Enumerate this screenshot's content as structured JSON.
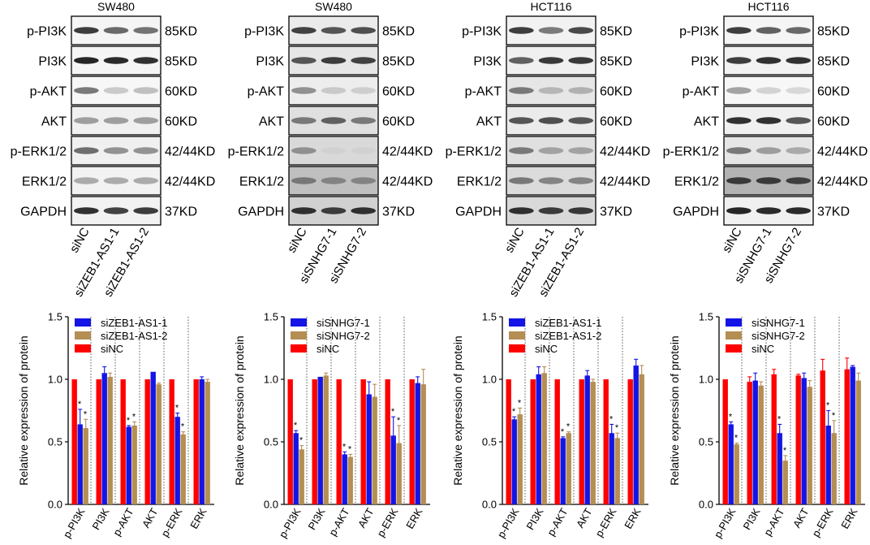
{
  "western_blots": [
    {
      "title": "SW480",
      "proteins": [
        "p-PI3K",
        "PI3K",
        "p-AKT",
        "AKT",
        "p-ERK1/2",
        "ERK1/2",
        "GAPDH"
      ],
      "sizes": [
        "85KD",
        "85KD",
        "60KD",
        "60KD",
        "42/44KD",
        "42/44KD",
        "37KD"
      ],
      "lanes": [
        "siNC",
        "siZEB1-AS1-1",
        "siZEB1-AS1-2"
      ],
      "band_intensity": [
        [
          0.8,
          0.62,
          0.58
        ],
        [
          0.9,
          0.88,
          0.85
        ],
        [
          0.55,
          0.22,
          0.26
        ],
        [
          0.4,
          0.4,
          0.4
        ],
        [
          0.6,
          0.45,
          0.45
        ],
        [
          0.35,
          0.35,
          0.35
        ],
        [
          0.85,
          0.78,
          0.8
        ]
      ],
      "panel_tone": [
        0.04,
        0.04,
        0.03,
        0.06,
        0.06,
        0.05,
        0.05
      ]
    },
    {
      "title": "SW480",
      "proteins": [
        "p-PI3K",
        "PI3K",
        "p-AKT",
        "AKT",
        "p-ERK1/2",
        "ERK1/2",
        "GAPDH"
      ],
      "sizes": [
        "85KD",
        "85KD",
        "60KD",
        "60KD",
        "42/44KD",
        "42/44KD",
        "37KD"
      ],
      "lanes": [
        "siNC",
        "siSNHG7-1",
        "siSNHG7-2"
      ],
      "band_intensity": [
        [
          0.78,
          0.7,
          0.72
        ],
        [
          0.7,
          0.8,
          0.78
        ],
        [
          0.45,
          0.22,
          0.2
        ],
        [
          0.55,
          0.65,
          0.55
        ],
        [
          0.45,
          0.18,
          0.18
        ],
        [
          0.55,
          0.5,
          0.5
        ],
        [
          0.85,
          0.8,
          0.85
        ]
      ],
      "panel_tone": [
        0.08,
        0.1,
        0.07,
        0.12,
        0.15,
        0.25,
        0.18
      ]
    },
    {
      "title": "HCT116",
      "proteins": [
        "p-PI3K",
        "PI3K",
        "p-AKT",
        "AKT",
        "p-ERK1/2",
        "ERK1/2",
        "GAPDH"
      ],
      "sizes": [
        "85KD",
        "85KD",
        "60KD",
        "60KD",
        "42/44KD",
        "42/44KD",
        "37KD"
      ],
      "lanes": [
        "siNC",
        "siZEB1-AS1-1",
        "siZEB1-AS1-2"
      ],
      "band_intensity": [
        [
          0.8,
          0.55,
          0.75
        ],
        [
          0.65,
          0.82,
          0.82
        ],
        [
          0.55,
          0.3,
          0.32
        ],
        [
          0.7,
          0.72,
          0.7
        ],
        [
          0.55,
          0.38,
          0.38
        ],
        [
          0.55,
          0.5,
          0.5
        ],
        [
          0.85,
          0.8,
          0.82
        ]
      ],
      "panel_tone": [
        0.05,
        0.06,
        0.1,
        0.08,
        0.12,
        0.14,
        0.15
      ]
    },
    {
      "title": "HCT116",
      "proteins": [
        "p-PI3K",
        "PI3K",
        "p-AKT",
        "AKT",
        "p-ERK1/2",
        "ERK1/2",
        "GAPDH"
      ],
      "sizes": [
        "85KD",
        "85KD",
        "60KD",
        "60KD",
        "42/44KD",
        "42/44KD",
        "37KD"
      ],
      "lanes": [
        "siNC",
        "siSNHG7-1",
        "siSNHG7-2"
      ],
      "band_intensity": [
        [
          0.8,
          0.65,
          0.62
        ],
        [
          0.8,
          0.85,
          0.85
        ],
        [
          0.38,
          0.18,
          0.16
        ],
        [
          0.85,
          0.85,
          0.7
        ],
        [
          0.55,
          0.4,
          0.35
        ],
        [
          0.8,
          0.8,
          0.78
        ],
        [
          0.9,
          0.88,
          0.88
        ]
      ],
      "panel_tone": [
        0.04,
        0.05,
        0.03,
        0.06,
        0.1,
        0.3,
        0.06
      ]
    }
  ],
  "chart_data": [
    {
      "type": "bar",
      "categories": [
        "p-PI3K",
        "PI3K",
        "p-AKT",
        "AKT",
        "p-ERK",
        "ERK"
      ],
      "series": [
        {
          "name": "siNC",
          "color": "#ff0000",
          "values": [
            1.0,
            1.0,
            1.0,
            1.0,
            1.0,
            1.0
          ],
          "errors": [
            0.0,
            0.0,
            0.0,
            0.0,
            0.0,
            0.0
          ],
          "sig": [
            false,
            false,
            false,
            false,
            false,
            false
          ]
        },
        {
          "name": "siZEB1-AS1-1",
          "color": "#1414e6",
          "values": [
            0.64,
            1.05,
            0.62,
            1.06,
            0.7,
            1.0
          ],
          "errors": [
            0.12,
            0.05,
            0.01,
            0.0,
            0.03,
            0.02
          ],
          "sig": [
            true,
            false,
            true,
            false,
            true,
            false
          ]
        },
        {
          "name": "siZEB1-AS1-2",
          "color": "#b48e53",
          "values": [
            0.61,
            1.02,
            0.63,
            0.96,
            0.56,
            0.98
          ],
          "errors": [
            0.07,
            0.03,
            0.03,
            0.01,
            0.02,
            0.02
          ],
          "sig": [
            true,
            false,
            true,
            false,
            true,
            false
          ]
        }
      ],
      "xlabel": "",
      "ylabel": "Relative expression of protein",
      "ylim": [
        0.0,
        1.5
      ],
      "yticks": [
        "0.0",
        "0.5",
        "1.0",
        "1.5"
      ],
      "legend_order": [
        "siZEB1-AS1-1",
        "siZEB1-AS1-2",
        "siNC"
      ],
      "legend": "top-left"
    },
    {
      "type": "bar",
      "categories": [
        "p-PI3K",
        "PI3K",
        "p-AKT",
        "AKT",
        "p-ERK",
        "ERK"
      ],
      "series": [
        {
          "name": "siNC",
          "color": "#ff0000",
          "values": [
            1.0,
            1.0,
            1.0,
            1.0,
            1.0,
            1.0
          ],
          "errors": [
            0.0,
            0.0,
            0.0,
            0.0,
            0.0,
            0.0
          ],
          "sig": [
            false,
            false,
            false,
            false,
            false,
            false
          ]
        },
        {
          "name": "siSNHG7-1",
          "color": "#1414e6",
          "values": [
            0.57,
            1.02,
            0.4,
            0.88,
            0.55,
            0.97
          ],
          "errors": [
            0.02,
            0.0,
            0.02,
            0.1,
            0.15,
            0.05
          ],
          "sig": [
            true,
            false,
            true,
            false,
            true,
            false
          ]
        },
        {
          "name": "siSNHG7-2",
          "color": "#b48e53",
          "values": [
            0.44,
            1.03,
            0.38,
            0.86,
            0.49,
            0.96
          ],
          "errors": [
            0.03,
            0.02,
            0.02,
            0.1,
            0.14,
            0.12
          ],
          "sig": [
            true,
            false,
            true,
            false,
            true,
            false
          ]
        }
      ],
      "xlabel": "",
      "ylabel": "Relative expression of protein",
      "ylim": [
        0.0,
        1.5
      ],
      "yticks": [
        "0.0",
        "0.5",
        "1.0",
        "1.5"
      ],
      "legend_order": [
        "siSNHG7-1",
        "siSNHG7-2",
        "siNC"
      ],
      "legend": "top-left"
    },
    {
      "type": "bar",
      "categories": [
        "p-PI3K",
        "PI3K",
        "p-AKT",
        "AKT",
        "p-ERK",
        "ERK"
      ],
      "series": [
        {
          "name": "siNC",
          "color": "#ff0000",
          "values": [
            1.0,
            1.0,
            1.0,
            1.0,
            1.0,
            1.0
          ],
          "errors": [
            0.0,
            0.0,
            0.0,
            0.0,
            0.0,
            0.0
          ],
          "sig": [
            false,
            false,
            false,
            false,
            false,
            false
          ]
        },
        {
          "name": "siZEB1-AS1-1",
          "color": "#1414e6",
          "values": [
            0.68,
            1.04,
            0.53,
            1.03,
            0.57,
            1.11
          ],
          "errors": [
            0.02,
            0.06,
            0.01,
            0.04,
            0.07,
            0.05
          ],
          "sig": [
            true,
            false,
            true,
            false,
            true,
            false
          ]
        },
        {
          "name": "siZEB1-AS1-2",
          "color": "#b48e53",
          "values": [
            0.72,
            1.05,
            0.57,
            0.98,
            0.53,
            1.04
          ],
          "errors": [
            0.05,
            0.05,
            0.01,
            0.02,
            0.04,
            0.07
          ],
          "sig": [
            true,
            false,
            true,
            false,
            true,
            false
          ]
        }
      ],
      "xlabel": "",
      "ylabel": "Relative expression of protein",
      "ylim": [
        0.0,
        1.5
      ],
      "yticks": [
        "0.0",
        "0.5",
        "1.0",
        "1.5"
      ],
      "legend_order": [
        "siZEB1-AS1-1",
        "siZEB1-AS1-2",
        "siNC"
      ],
      "legend": "top-left"
    },
    {
      "type": "bar",
      "categories": [
        "p-PI3K",
        "PI3K",
        "p-AKT",
        "AKT",
        "p-ERK",
        "ERK"
      ],
      "series": [
        {
          "name": "siNC",
          "color": "#ff0000",
          "values": [
            1.0,
            0.98,
            1.04,
            1.03,
            1.07,
            1.08
          ],
          "errors": [
            0.0,
            0.04,
            0.04,
            0.01,
            0.09,
            0.09
          ],
          "sig": [
            false,
            false,
            false,
            false,
            false,
            false
          ]
        },
        {
          "name": "siSNHG7-1",
          "color": "#1414e6",
          "values": [
            0.64,
            0.99,
            0.57,
            1.01,
            0.63,
            1.1
          ],
          "errors": [
            0.02,
            0.06,
            0.07,
            0.04,
            0.12,
            0.01
          ],
          "sig": [
            true,
            false,
            true,
            false,
            true,
            false
          ]
        },
        {
          "name": "siSNHG7-2",
          "color": "#b48e53",
          "values": [
            0.48,
            0.95,
            0.35,
            0.94,
            0.57,
            0.99
          ],
          "errors": [
            0.01,
            0.03,
            0.04,
            0.05,
            0.1,
            0.06
          ],
          "sig": [
            true,
            false,
            true,
            false,
            true,
            false
          ]
        }
      ],
      "xlabel": "",
      "ylabel": "Relative expression of protein",
      "ylim": [
        0.0,
        1.5
      ],
      "yticks": [
        "0.0",
        "0.5",
        "1.0",
        "1.5"
      ],
      "legend_order": [
        "siSNHG7-1",
        "siSNHG7-2",
        "siNC"
      ],
      "legend": "top-left"
    }
  ]
}
